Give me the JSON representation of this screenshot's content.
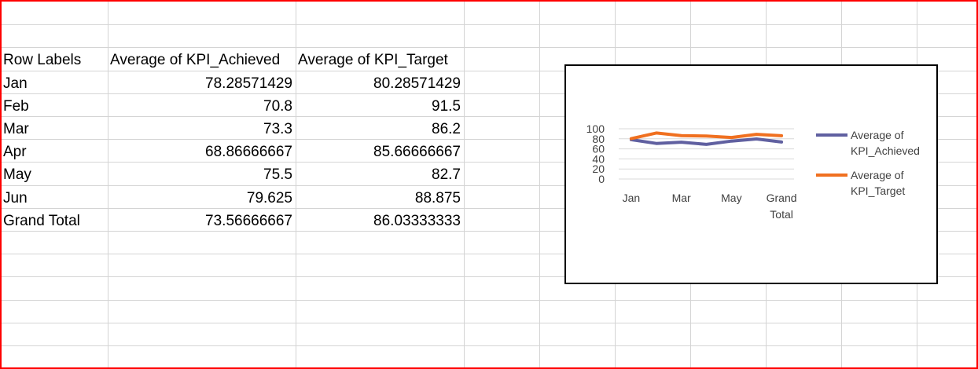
{
  "pivot": {
    "headers": [
      "Row Labels",
      "Average of KPI_Achieved",
      "Average of KPI_Target"
    ],
    "rows": [
      {
        "label": "Jan",
        "achieved": "78.28571429",
        "target": "80.28571429"
      },
      {
        "label": "Feb",
        "achieved": "70.8",
        "target": "91.5"
      },
      {
        "label": "Mar",
        "achieved": "73.3",
        "target": "86.2"
      },
      {
        "label": "Apr",
        "achieved": "68.86666667",
        "target": "85.66666667"
      },
      {
        "label": "May",
        "achieved": "75.5",
        "target": "82.7"
      },
      {
        "label": "Jun",
        "achieved": "79.625",
        "target": "88.875"
      },
      {
        "label": "Grand Total",
        "achieved": "73.56666667",
        "target": "86.03333333"
      }
    ]
  },
  "chart_data": {
    "type": "line",
    "title": "",
    "categories": [
      "Jan",
      "Feb",
      "Mar",
      "Apr",
      "May",
      "Jun",
      "Grand Total"
    ],
    "visible_category_labels": [
      "Jan",
      "Mar",
      "May",
      "Grand Total"
    ],
    "series": [
      {
        "name": "Average of KPI_Achieved",
        "color": "#6060a0",
        "values": [
          78.28571429,
          70.8,
          73.3,
          68.86666667,
          75.5,
          79.625,
          73.56666667
        ]
      },
      {
        "name": "Average of KPI_Target",
        "color": "#f07020",
        "values": [
          80.28571429,
          91.5,
          86.2,
          85.66666667,
          82.7,
          88.875,
          86.03333333
        ]
      }
    ],
    "y_ticks": [
      "100",
      "80",
      "60",
      "40",
      "20",
      "0"
    ],
    "ylim": [
      0,
      100
    ],
    "grid": true,
    "legend": "right",
    "xlabel": "",
    "ylabel": ""
  }
}
